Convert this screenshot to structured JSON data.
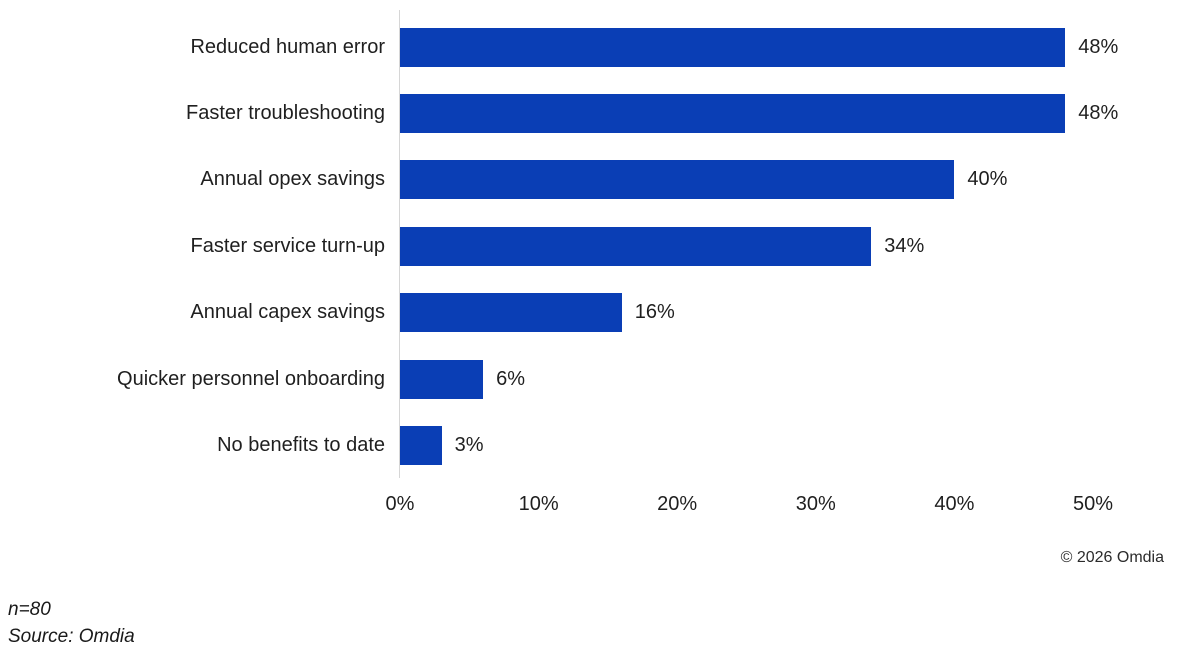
{
  "chart_data": {
    "type": "bar",
    "orientation": "horizontal",
    "title": "",
    "xlabel": "",
    "ylabel": "",
    "categories": [
      "Reduced human error",
      "Faster troubleshooting",
      "Annual opex savings",
      "Faster service turn-up",
      "Annual capex savings",
      "Quicker personnel onboarding",
      "No benefits to date"
    ],
    "values": [
      48,
      48,
      40,
      34,
      16,
      6,
      3
    ],
    "value_labels": [
      "48%",
      "48%",
      "40%",
      "34%",
      "16%",
      "6%",
      "3%"
    ],
    "x_ticks": [
      "0%",
      "10%",
      "20%",
      "30%",
      "40%",
      "50%"
    ],
    "x_tick_values": [
      0,
      10,
      20,
      30,
      40,
      50
    ],
    "xlim": [
      0,
      50
    ],
    "grid": false,
    "legend": false,
    "bar_color": "#0A3EB5",
    "axis_line_color": "#d6d6d6"
  },
  "annotations": {
    "copyright": "© 2026 Omdia",
    "sample_size": "n=80",
    "source": "Source: Omdia"
  }
}
